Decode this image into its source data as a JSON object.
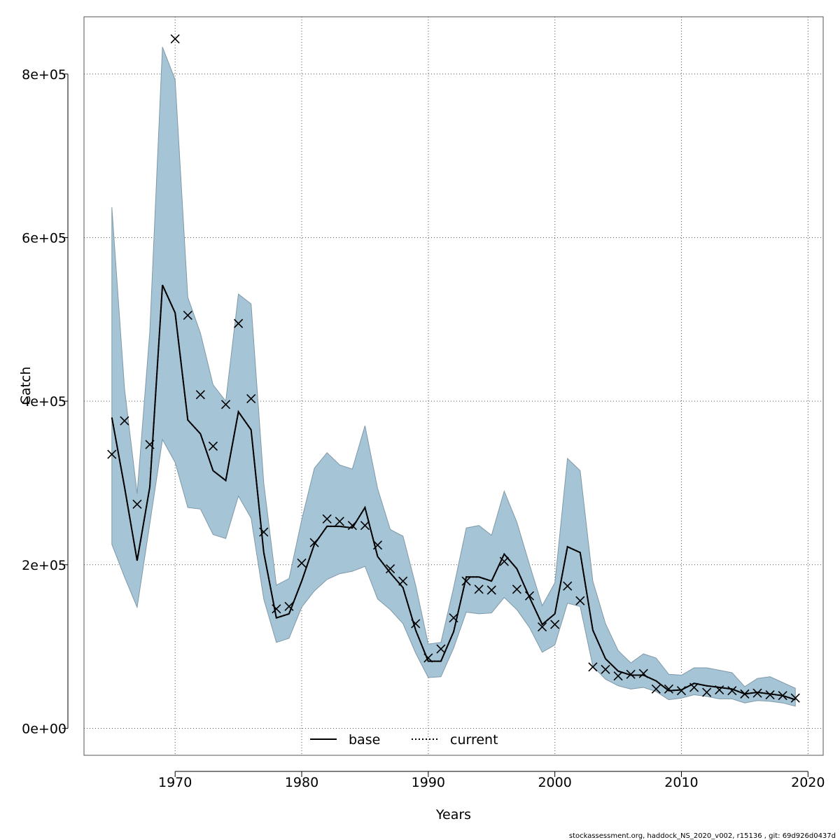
{
  "chart_data": {
    "type": "line",
    "xlabel": "Years",
    "ylabel": "Catch",
    "xlim": [
      1962.8,
      2021.2
    ],
    "ylim": [
      -33000,
      870000
    ],
    "x_ticks": [
      1970,
      1980,
      1990,
      2000,
      2010,
      2020
    ],
    "x_tick_labels": [
      "1970",
      "1980",
      "1990",
      "2000",
      "2010",
      "2020"
    ],
    "y_ticks": [
      0,
      200000,
      400000,
      600000,
      800000
    ],
    "y_tick_labels": [
      "0e+00",
      "2e+05",
      "4e+05",
      "6e+05",
      "8e+05"
    ],
    "grid": true,
    "legend_placement": "bottom-center",
    "legend": [
      {
        "label": "base",
        "style": "solid",
        "color": "#000000"
      },
      {
        "label": "current",
        "style": "dotted",
        "color": "#000000"
      }
    ],
    "colors": {
      "band": "#a5c4d6",
      "band_edge": "#7f99a8",
      "line": "#000000",
      "grid": "#555555"
    },
    "x": [
      1965,
      1966,
      1967,
      1968,
      1969,
      1970,
      1971,
      1972,
      1973,
      1974,
      1975,
      1976,
      1977,
      1978,
      1979,
      1980,
      1981,
      1982,
      1983,
      1984,
      1985,
      1986,
      1987,
      1988,
      1989,
      1990,
      1991,
      1992,
      1993,
      1994,
      1995,
      1996,
      1997,
      1998,
      1999,
      2000,
      2001,
      2002,
      2003,
      2004,
      2005,
      2006,
      2007,
      2008,
      2009,
      2010,
      2011,
      2012,
      2013,
      2014,
      2015,
      2016,
      2017,
      2018,
      2019
    ],
    "series": [
      {
        "name": "base",
        "style": "solid",
        "values": [
          380000,
          295000,
          205000,
          295000,
          542000,
          508000,
          377000,
          360000,
          315000,
          303000,
          387000,
          365000,
          215000,
          135000,
          140000,
          180000,
          225000,
          247000,
          247000,
          245000,
          270000,
          210000,
          190000,
          172000,
          120000,
          82000,
          82000,
          118000,
          185000,
          185000,
          180000,
          213000,
          195000,
          160000,
          127000,
          140000,
          222000,
          215000,
          120000,
          85000,
          70000,
          65000,
          65000,
          58000,
          46000,
          47000,
          55000,
          52000,
          50000,
          48000,
          42000,
          44000,
          42000,
          40000,
          35000
        ]
      },
      {
        "name": "current",
        "style": "dotted",
        "values": [
          380000,
          295000,
          205000,
          295000,
          542000,
          508000,
          377000,
          360000,
          315000,
          303000,
          387000,
          365000,
          215000,
          135000,
          140000,
          180000,
          225000,
          247000,
          247000,
          245000,
          270000,
          210000,
          190000,
          172000,
          120000,
          82000,
          82000,
          118000,
          185000,
          185000,
          180000,
          213000,
          195000,
          160000,
          127000,
          140000,
          222000,
          215000,
          120000,
          85000,
          70000,
          65000,
          65000,
          58000,
          46000,
          47000,
          55000,
          52000,
          50000,
          48000,
          42000,
          44000,
          42000,
          40000,
          35000
        ]
      }
    ],
    "band_upper": [
      637000,
      415000,
      287000,
      485000,
      833000,
      793000,
      527000,
      483000,
      420000,
      400000,
      531000,
      519000,
      300000,
      175000,
      183000,
      255000,
      318000,
      337000,
      322000,
      317000,
      370000,
      293000,
      243000,
      235000,
      175000,
      103000,
      105000,
      172000,
      245000,
      248000,
      236000,
      290000,
      252000,
      200000,
      150000,
      178000,
      330000,
      315000,
      180000,
      128000,
      95000,
      80000,
      91000,
      86000,
      66000,
      65000,
      74000,
      74000,
      71000,
      68000,
      51000,
      61000,
      63000,
      56000,
      49000
    ],
    "band_lower": [
      225000,
      185000,
      148000,
      250000,
      353000,
      325000,
      270000,
      268000,
      237000,
      232000,
      284000,
      257000,
      158000,
      105000,
      110000,
      148000,
      168000,
      182000,
      189000,
      192000,
      198000,
      158000,
      145000,
      128000,
      92000,
      62000,
      63000,
      98000,
      142000,
      140000,
      141000,
      160000,
      145000,
      123000,
      93000,
      102000,
      153000,
      149000,
      76000,
      60000,
      52000,
      48000,
      50000,
      45000,
      35000,
      37000,
      41000,
      39000,
      36000,
      36000,
      31000,
      34000,
      33000,
      31000,
      27000
    ],
    "observed_marker": "x",
    "observed": [
      335000,
      376000,
      274000,
      347000,
      null,
      843000,
      505000,
      408000,
      345000,
      396000,
      495000,
      403000,
      240000,
      146000,
      149000,
      202000,
      227000,
      256000,
      253000,
      248000,
      248000,
      224000,
      195000,
      180000,
      128000,
      86000,
      97000,
      135000,
      180000,
      170000,
      169000,
      204000,
      170000,
      162000,
      124000,
      127000,
      174000,
      156000,
      75000,
      72000,
      64000,
      66000,
      67000,
      48000,
      48000,
      46000,
      50000,
      44000,
      47000,
      46000,
      42000,
      43000,
      41000,
      40000,
      37000
    ]
  },
  "footer": "stockassessment.org, haddock_NS_2020_v002, r15136 , git: 69d926d0437d"
}
